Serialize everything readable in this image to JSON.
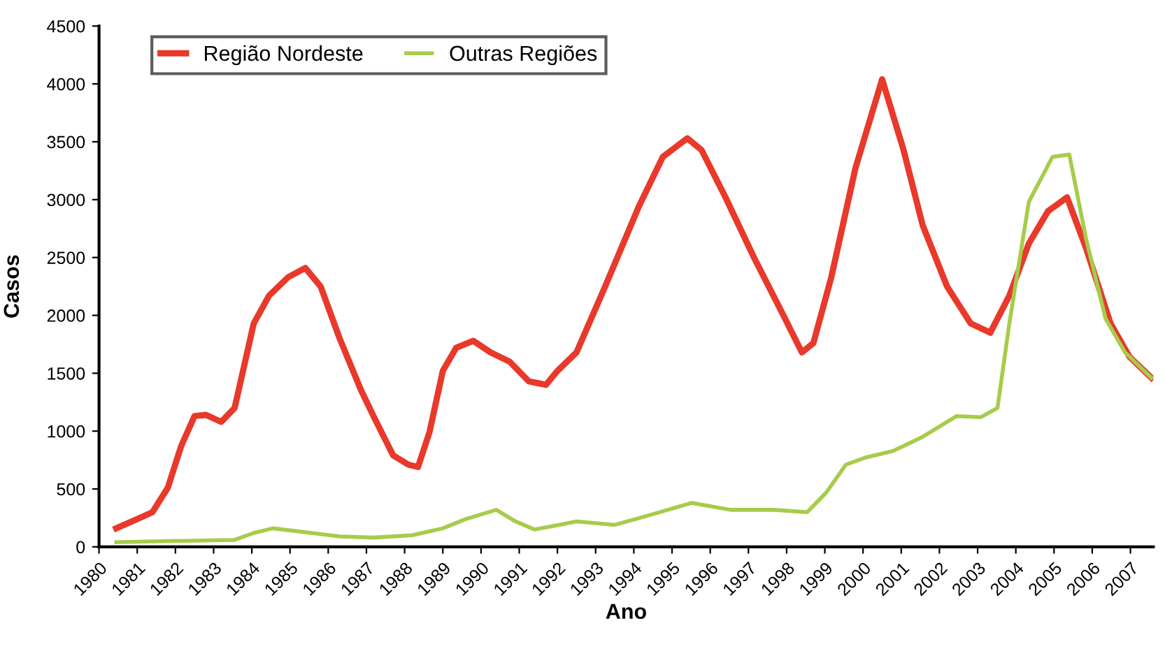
{
  "chart_data": {
    "type": "line",
    "xlabel": "Ano",
    "ylabel": "Casos",
    "xlim": [
      1980,
      2007.6
    ],
    "xticks": [
      1980,
      1981,
      1982,
      1983,
      1984,
      1985,
      1986,
      1987,
      1988,
      1989,
      1990,
      1991,
      1992,
      1993,
      1994,
      1995,
      1996,
      1997,
      1998,
      1999,
      2000,
      2001,
      2002,
      2003,
      2004,
      2005,
      2006,
      2007
    ],
    "ylim": [
      0,
      4500
    ],
    "yticks": [
      0,
      500,
      1000,
      1500,
      2000,
      2500,
      3000,
      3500,
      4000,
      4500
    ],
    "grid": false,
    "legend": "top left",
    "marker": "none",
    "line_style": "solid",
    "series": [
      {
        "name": "Região Nordeste",
        "color": "#e8392b",
        "x": [
          1980.45,
          1981.0,
          1981.4,
          1981.8,
          1982.15,
          1982.5,
          1982.8,
          1983.2,
          1983.55,
          1984.05,
          1984.45,
          1984.95,
          1985.4,
          1985.8,
          1986.3,
          1986.85,
          1987.2,
          1987.7,
          1988.1,
          1988.35,
          1988.65,
          1989.0,
          1989.35,
          1989.8,
          1990.25,
          1990.75,
          1991.25,
          1991.7,
          1992.0,
          1992.5,
          1993.25,
          1994.13,
          1994.76,
          1995.4,
          1995.77,
          1996.4,
          1997.16,
          1997.9,
          1998.4,
          1998.7,
          1999.17,
          1999.8,
          2000.5,
          2001.06,
          2001.56,
          2002.2,
          2002.82,
          2003.33,
          2003.83,
          2004.34,
          2004.84,
          2005.34,
          2005.84,
          2006.48,
          2006.98,
          2007.55
        ],
        "values": [
          160,
          240,
          300,
          510,
          870,
          1130,
          1140,
          1080,
          1200,
          1930,
          2170,
          2330,
          2410,
          2250,
          1800,
          1360,
          1120,
          790,
          710,
          690,
          990,
          1520,
          1720,
          1780,
          1680,
          1600,
          1430,
          1400,
          1520,
          1680,
          2250,
          2940,
          3370,
          3530,
          3430,
          3020,
          2490,
          2010,
          1680,
          1760,
          2330,
          3270,
          4040,
          3430,
          2780,
          2250,
          1930,
          1850,
          2170,
          2620,
          2900,
          3020,
          2580,
          1930,
          1640,
          1460
        ]
      },
      {
        "name": "Outras Regiões",
        "color": "#a6cc4a",
        "x": [
          1980.45,
          1981.9,
          1983.55,
          1984.05,
          1984.55,
          1985.3,
          1986.3,
          1987.2,
          1988.2,
          1989.0,
          1989.6,
          1990.4,
          1990.9,
          1991.4,
          1991.9,
          1992.5,
          1993.5,
          1994.26,
          1995.52,
          1996.53,
          1997.66,
          1998.54,
          1999.04,
          1999.55,
          2000.05,
          2000.8,
          2001.56,
          2002.45,
          2003.08,
          2003.52,
          2003.83,
          2004.34,
          2004.96,
          2005.4,
          2005.84,
          2006.35,
          2006.86,
          2007.55
        ],
        "values": [
          40,
          50,
          60,
          120,
          160,
          130,
          90,
          80,
          100,
          160,
          240,
          320,
          220,
          150,
          180,
          220,
          190,
          260,
          380,
          320,
          320,
          300,
          470,
          710,
          770,
          830,
          950,
          1130,
          1120,
          1200,
          1930,
          2980,
          3370,
          3390,
          2660,
          1970,
          1680,
          1460
        ]
      }
    ]
  }
}
